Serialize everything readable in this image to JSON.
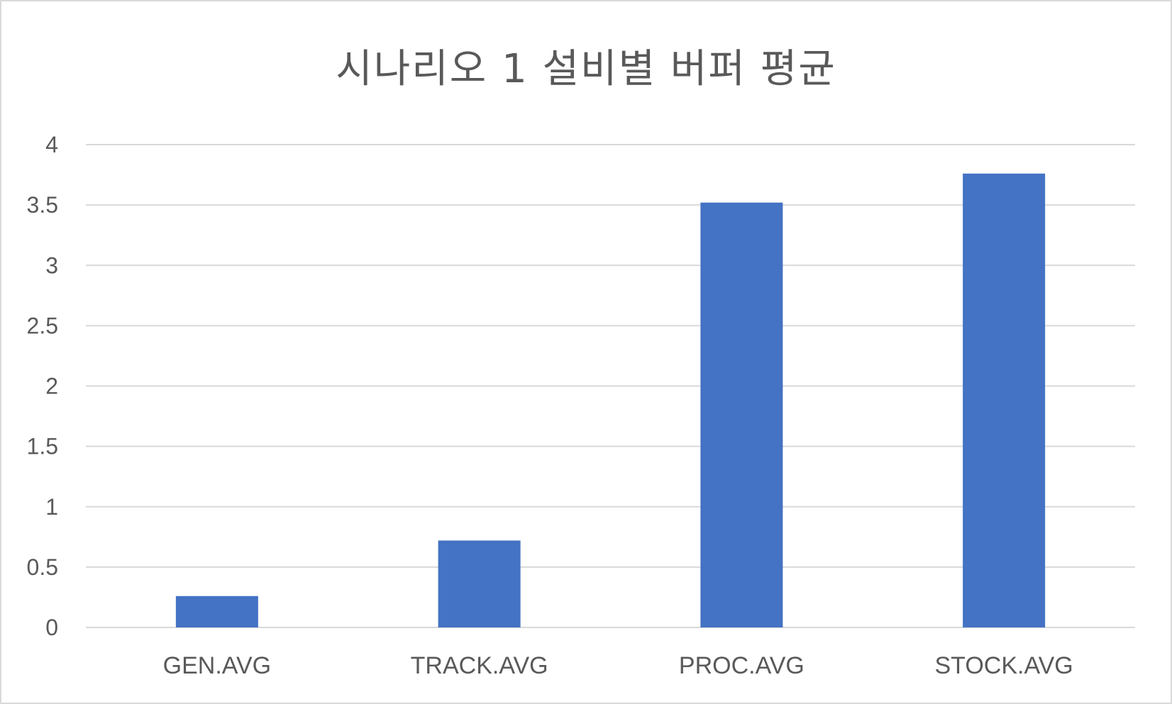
{
  "chart_data": {
    "type": "bar",
    "title": "시나리오 1 설비별 버퍼 평균",
    "categories": [
      "GEN.AVG",
      "TRACK.AVG",
      "PROC.AVG",
      "STOCK.AVG"
    ],
    "values": [
      0.26,
      0.72,
      3.52,
      3.76
    ],
    "y_ticks": [
      "0",
      "0.5",
      "1",
      "1.5",
      "2",
      "2.5",
      "3",
      "3.5",
      "4"
    ],
    "ylim": [
      0,
      4
    ],
    "grid": true,
    "bar_color": "#4472C4",
    "grid_color": "#D9D9D9"
  }
}
